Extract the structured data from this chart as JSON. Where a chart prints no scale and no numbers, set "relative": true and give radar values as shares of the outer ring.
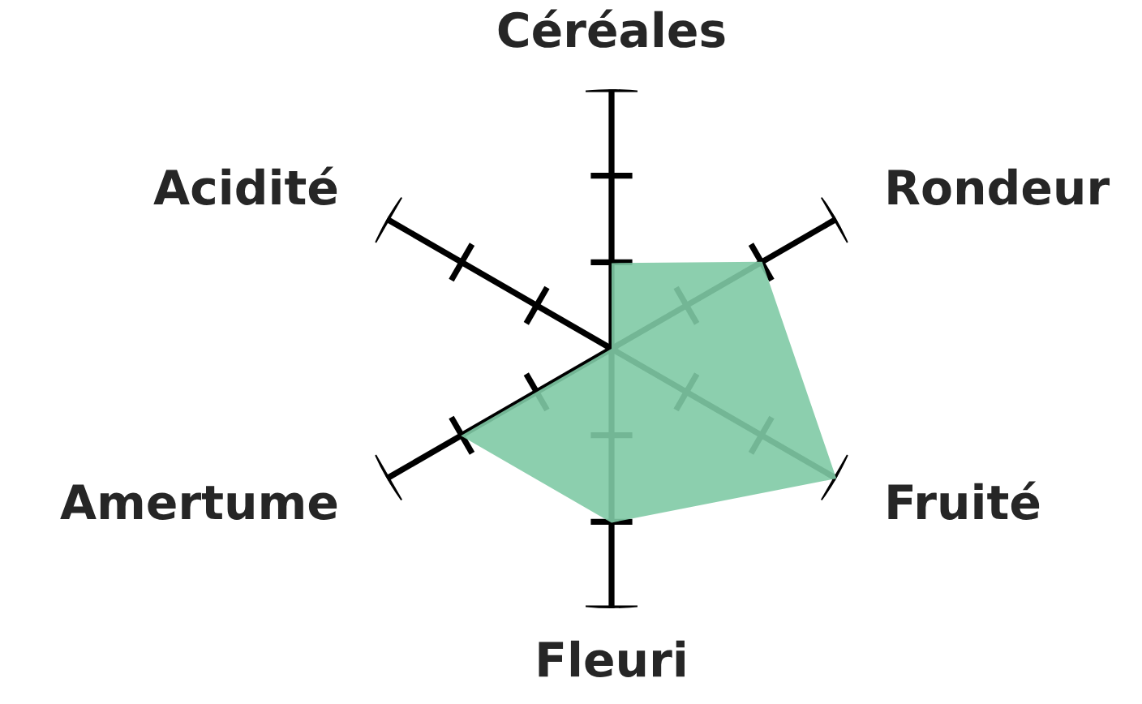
{
  "chart_data": {
    "type": "radar",
    "relative": true,
    "categories": [
      "Céréales",
      "Rondeur",
      "Fruité",
      "Fleuri",
      "Amertume",
      "Acidité"
    ],
    "series": [
      {
        "color": "#7fcaa5",
        "values": [
          0.33,
          0.67,
          1,
          0.67,
          0.67,
          0
        ]
      }
    ]
  }
}
